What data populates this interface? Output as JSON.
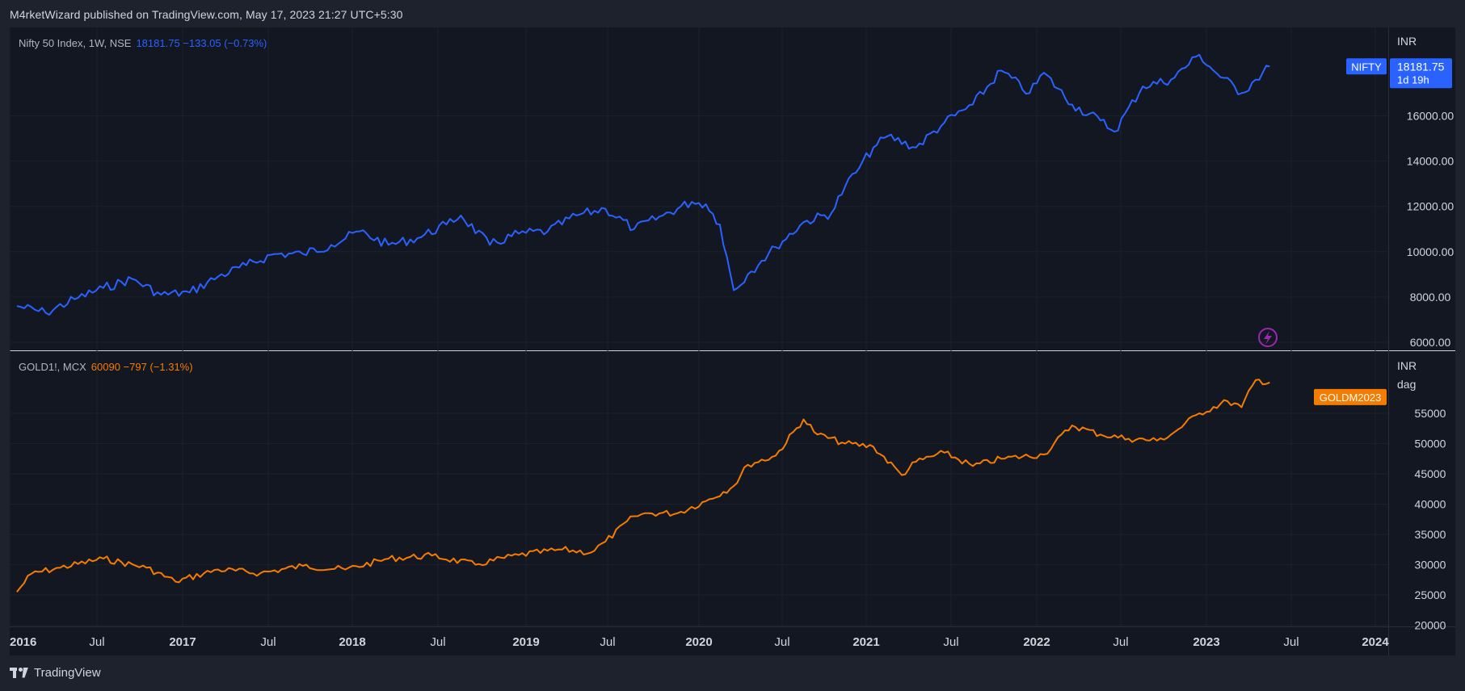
{
  "header": {
    "text": "M4rketWizard published on TradingView.com, May 17, 2023 21:27 UTC+5:30"
  },
  "footer": {
    "brand": "TradingView",
    "logo_icon": "tradingview-logo-icon"
  },
  "colors": {
    "background": "#131722",
    "grid": "#1e2230",
    "axis_text": "#d1d4dc",
    "nifty": "#2962ff",
    "gold": "#f57c00"
  },
  "panes": [
    {
      "legend": {
        "symbol": "Nifty 50 Index, 1W, NSE",
        "values": "18181.75  −133.05 (−0.73%)"
      },
      "currency": "INR",
      "price_tag": {
        "label": "NIFTY",
        "value": "18181.75",
        "countdown": "1d 19h"
      },
      "y_ticks": [
        "16000.00",
        "14000.00",
        "12000.00",
        "10000.00",
        "8000.00",
        "6000.00"
      ]
    },
    {
      "legend": {
        "symbol": "GOLD1!, MCX",
        "values": "60090  −797 (−1.31%)"
      },
      "currency": "INR",
      "unit": "dag",
      "price_tag": {
        "label": "GOLDM2023"
      },
      "y_ticks": [
        "55000",
        "50000",
        "45000",
        "40000",
        "35000",
        "30000",
        "25000",
        "20000"
      ]
    }
  ],
  "x_axis": {
    "labels": [
      "2016",
      "Jul",
      "2017",
      "Jul",
      "2018",
      "Jul",
      "2019",
      "Jul",
      "2020",
      "Jul",
      "2021",
      "Jul",
      "2022",
      "Jul",
      "2023",
      "Jul",
      "2024"
    ],
    "bold": [
      true,
      false,
      true,
      false,
      true,
      false,
      true,
      false,
      true,
      false,
      true,
      false,
      true,
      false,
      true,
      false,
      true
    ]
  },
  "alert_icon": "lightning-icon",
  "chart_data": [
    {
      "type": "line",
      "title": "Nifty 50 Index, 1W, NSE",
      "series": [
        {
          "name": "NIFTY",
          "color": "#2962ff"
        }
      ],
      "x": [
        "2016-01",
        "2016-03",
        "2016-05",
        "2016-07",
        "2016-09",
        "2016-11",
        "2017-01",
        "2017-03",
        "2017-05",
        "2017-07",
        "2017-09",
        "2017-11",
        "2018-01",
        "2018-03",
        "2018-05",
        "2018-07",
        "2018-08",
        "2018-10",
        "2018-12",
        "2019-02",
        "2019-04",
        "2019-06",
        "2019-08",
        "2019-10",
        "2019-12",
        "2020-01",
        "2020-02",
        "2020-03",
        "2020-04",
        "2020-05",
        "2020-06",
        "2020-08",
        "2020-10",
        "2020-11",
        "2020-12",
        "2021-01",
        "2021-02",
        "2021-04",
        "2021-06",
        "2021-08",
        "2021-10",
        "2021-12",
        "2022-01",
        "2022-03",
        "2022-05",
        "2022-06",
        "2022-08",
        "2022-10",
        "2022-12",
        "2023-01",
        "2023-03",
        "2023-04",
        "2023-05"
      ],
      "values": [
        7600,
        7300,
        7900,
        8400,
        8800,
        8100,
        8200,
        8900,
        9400,
        9900,
        9900,
        10300,
        10900,
        10300,
        10600,
        11200,
        11600,
        10300,
        10800,
        10900,
        11600,
        11900,
        11000,
        11600,
        12200,
        12100,
        11200,
        8300,
        9000,
        9600,
        10200,
        11300,
        11700,
        12900,
        13700,
        14600,
        15100,
        14600,
        15700,
        16500,
        18000,
        17000,
        17900,
        16500,
        15800,
        15300,
        17300,
        17600,
        18700,
        18000,
        17000,
        17600,
        18181.75
      ],
      "ylim": [
        6000,
        19000
      ]
    },
    {
      "type": "line",
      "title": "GOLD1!, MCX",
      "series": [
        {
          "name": "GOLDM2023",
          "color": "#f57c00"
        }
      ],
      "x": [
        "2016-01",
        "2016-02",
        "2016-04",
        "2016-07",
        "2016-10",
        "2016-12",
        "2017-03",
        "2017-06",
        "2017-09",
        "2017-12",
        "2018-03",
        "2018-06",
        "2018-09",
        "2018-12",
        "2019-03",
        "2019-05",
        "2019-06",
        "2019-08",
        "2019-09",
        "2019-11",
        "2020-01",
        "2020-03",
        "2020-04",
        "2020-06",
        "2020-08",
        "2020-09",
        "2020-11",
        "2021-01",
        "2021-03",
        "2021-04",
        "2021-06",
        "2021-08",
        "2021-10",
        "2022-01",
        "2022-03",
        "2022-05",
        "2022-07",
        "2022-09",
        "2022-10",
        "2022-12",
        "2023-02",
        "2023-03",
        "2023-04",
        "2023-05"
      ],
      "values": [
        25500,
        28500,
        29500,
        31000,
        29500,
        27200,
        29200,
        28600,
        29800,
        29200,
        31000,
        31500,
        30000,
        31600,
        32500,
        32000,
        33800,
        38000,
        38500,
        38500,
        40500,
        43000,
        46500,
        48000,
        54000,
        51500,
        50000,
        49500,
        44800,
        47000,
        48500,
        46300,
        47500,
        48200,
        53000,
        51500,
        50800,
        50500,
        51500,
        55000,
        57000,
        56000,
        60500,
        60090
      ],
      "ylim": [
        20000,
        62000
      ]
    }
  ]
}
